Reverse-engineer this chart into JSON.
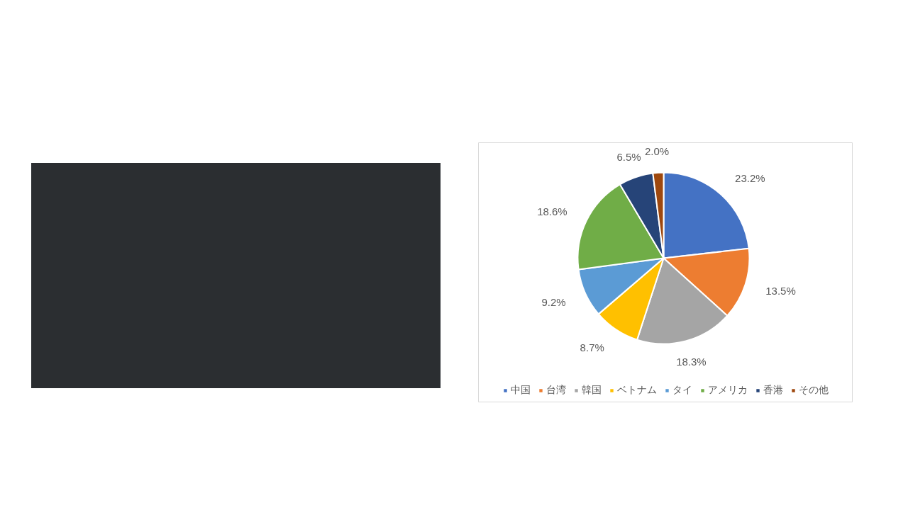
{
  "chart_data": {
    "type": "pie",
    "categories": [
      "中国",
      "台湾",
      "韓国",
      "ベトナム",
      "タイ",
      "アメリカ",
      "香港",
      "その他"
    ],
    "values": [
      23.2,
      13.5,
      18.3,
      8.7,
      9.2,
      18.6,
      6.5,
      2.0
    ],
    "colors": [
      "#4472c4",
      "#ed7d31",
      "#a5a5a5",
      "#ffc000",
      "#5b9bd5",
      "#70ad47",
      "#264478",
      "#9e480e"
    ],
    "value_labels": [
      "23.2%",
      "13.5%",
      "18.3%",
      "8.7%",
      "9.2%",
      "18.6%",
      "6.5%",
      "2.0%"
    ],
    "legend": "bottom"
  }
}
